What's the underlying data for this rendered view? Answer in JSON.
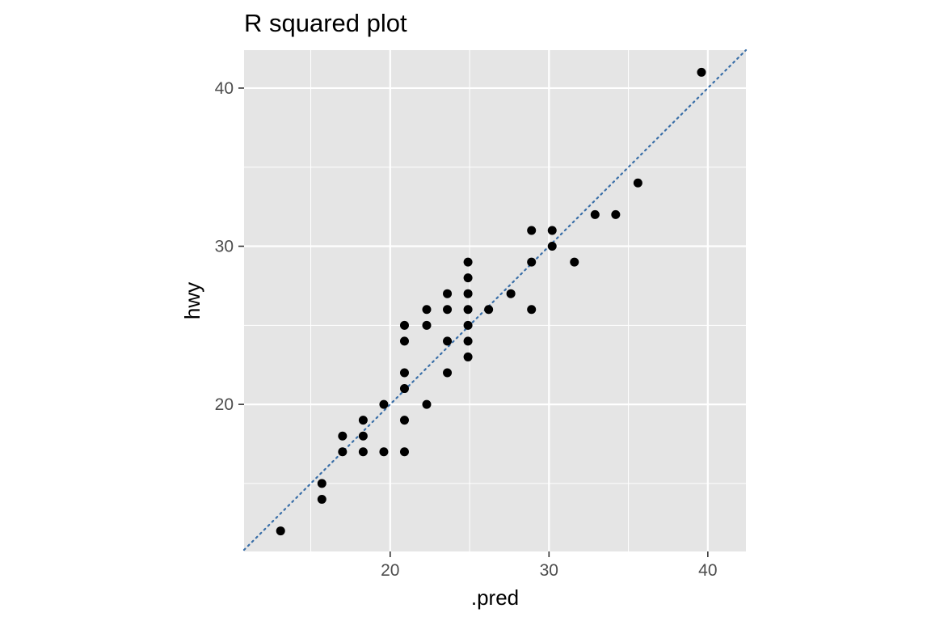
{
  "chart_data": {
    "type": "scatter",
    "title": "R squared plot",
    "xlabel": ".pred",
    "ylabel": "hwy",
    "xlim": [
      10.8,
      42.4
    ],
    "ylim": [
      10.7,
      42.4
    ],
    "x_ticks": [
      20,
      30,
      40
    ],
    "y_ticks": [
      20,
      30,
      40
    ],
    "grid": true,
    "colors": {
      "panel": "#e5e5e5",
      "grid": "#ffffff",
      "point": "#000000",
      "reference_line": "#3a6fa8",
      "tick_text": "#4d4d4d"
    },
    "reference_line": {
      "slope": 1,
      "intercept": 0,
      "style": "dotted"
    },
    "points": [
      {
        "x": 13.1,
        "y": 12
      },
      {
        "x": 15.7,
        "y": 15
      },
      {
        "x": 15.7,
        "y": 14
      },
      {
        "x": 17.0,
        "y": 18
      },
      {
        "x": 17.0,
        "y": 17
      },
      {
        "x": 18.3,
        "y": 19
      },
      {
        "x": 18.3,
        "y": 18
      },
      {
        "x": 18.3,
        "y": 17
      },
      {
        "x": 19.6,
        "y": 20
      },
      {
        "x": 19.6,
        "y": 17
      },
      {
        "x": 20.9,
        "y": 25
      },
      {
        "x": 20.9,
        "y": 24
      },
      {
        "x": 20.9,
        "y": 22
      },
      {
        "x": 20.9,
        "y": 21
      },
      {
        "x": 20.9,
        "y": 19
      },
      {
        "x": 20.9,
        "y": 17
      },
      {
        "x": 22.3,
        "y": 26
      },
      {
        "x": 22.3,
        "y": 25
      },
      {
        "x": 22.3,
        "y": 20
      },
      {
        "x": 23.6,
        "y": 27
      },
      {
        "x": 23.6,
        "y": 26
      },
      {
        "x": 23.6,
        "y": 24
      },
      {
        "x": 23.6,
        "y": 22
      },
      {
        "x": 24.9,
        "y": 29
      },
      {
        "x": 24.9,
        "y": 28
      },
      {
        "x": 24.9,
        "y": 27
      },
      {
        "x": 24.9,
        "y": 26
      },
      {
        "x": 24.9,
        "y": 25
      },
      {
        "x": 24.9,
        "y": 24
      },
      {
        "x": 24.9,
        "y": 23
      },
      {
        "x": 26.2,
        "y": 26
      },
      {
        "x": 27.6,
        "y": 27
      },
      {
        "x": 28.9,
        "y": 31
      },
      {
        "x": 28.9,
        "y": 29
      },
      {
        "x": 28.9,
        "y": 26
      },
      {
        "x": 30.2,
        "y": 31
      },
      {
        "x": 30.2,
        "y": 30
      },
      {
        "x": 31.6,
        "y": 29
      },
      {
        "x": 32.9,
        "y": 32
      },
      {
        "x": 34.2,
        "y": 32
      },
      {
        "x": 35.6,
        "y": 34
      },
      {
        "x": 39.6,
        "y": 41
      }
    ]
  }
}
